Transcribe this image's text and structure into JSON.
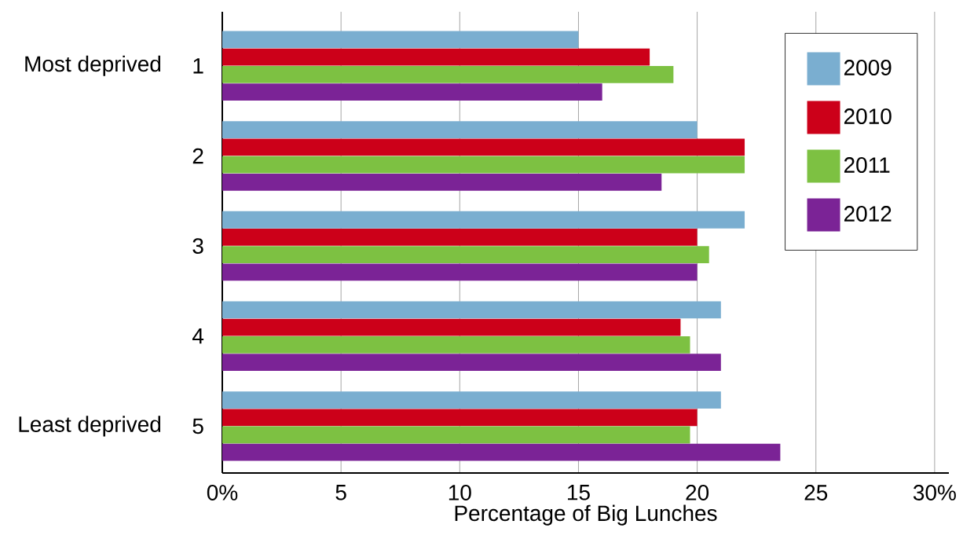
{
  "chart_data": {
    "type": "bar",
    "orientation": "horizontal",
    "xlabel": "Percentage of Big Lunches",
    "categories": [
      "1",
      "2",
      "3",
      "4",
      "5"
    ],
    "series": [
      {
        "name": "2009",
        "color": "#7aaed0",
        "values": [
          15,
          20,
          22,
          21,
          21
        ]
      },
      {
        "name": "2010",
        "color": "#cc0019",
        "values": [
          18,
          22,
          20,
          19.3,
          20
        ]
      },
      {
        "name": "2011",
        "color": "#7dc142",
        "values": [
          19,
          22,
          20.5,
          19.7,
          19.7
        ]
      },
      {
        "name": "2012",
        "color": "#7b2396",
        "values": [
          16,
          18.5,
          20,
          21,
          23.5
        ]
      }
    ],
    "xlim": [
      0,
      30.6
    ],
    "xticks": [
      {
        "value": 0,
        "label": "0%"
      },
      5,
      10,
      15,
      20,
      25,
      {
        "value": 30,
        "label": "30%"
      }
    ],
    "grid": "x",
    "legend": "top right",
    "annotations": [
      "Most deprived",
      "Least deprived"
    ]
  }
}
